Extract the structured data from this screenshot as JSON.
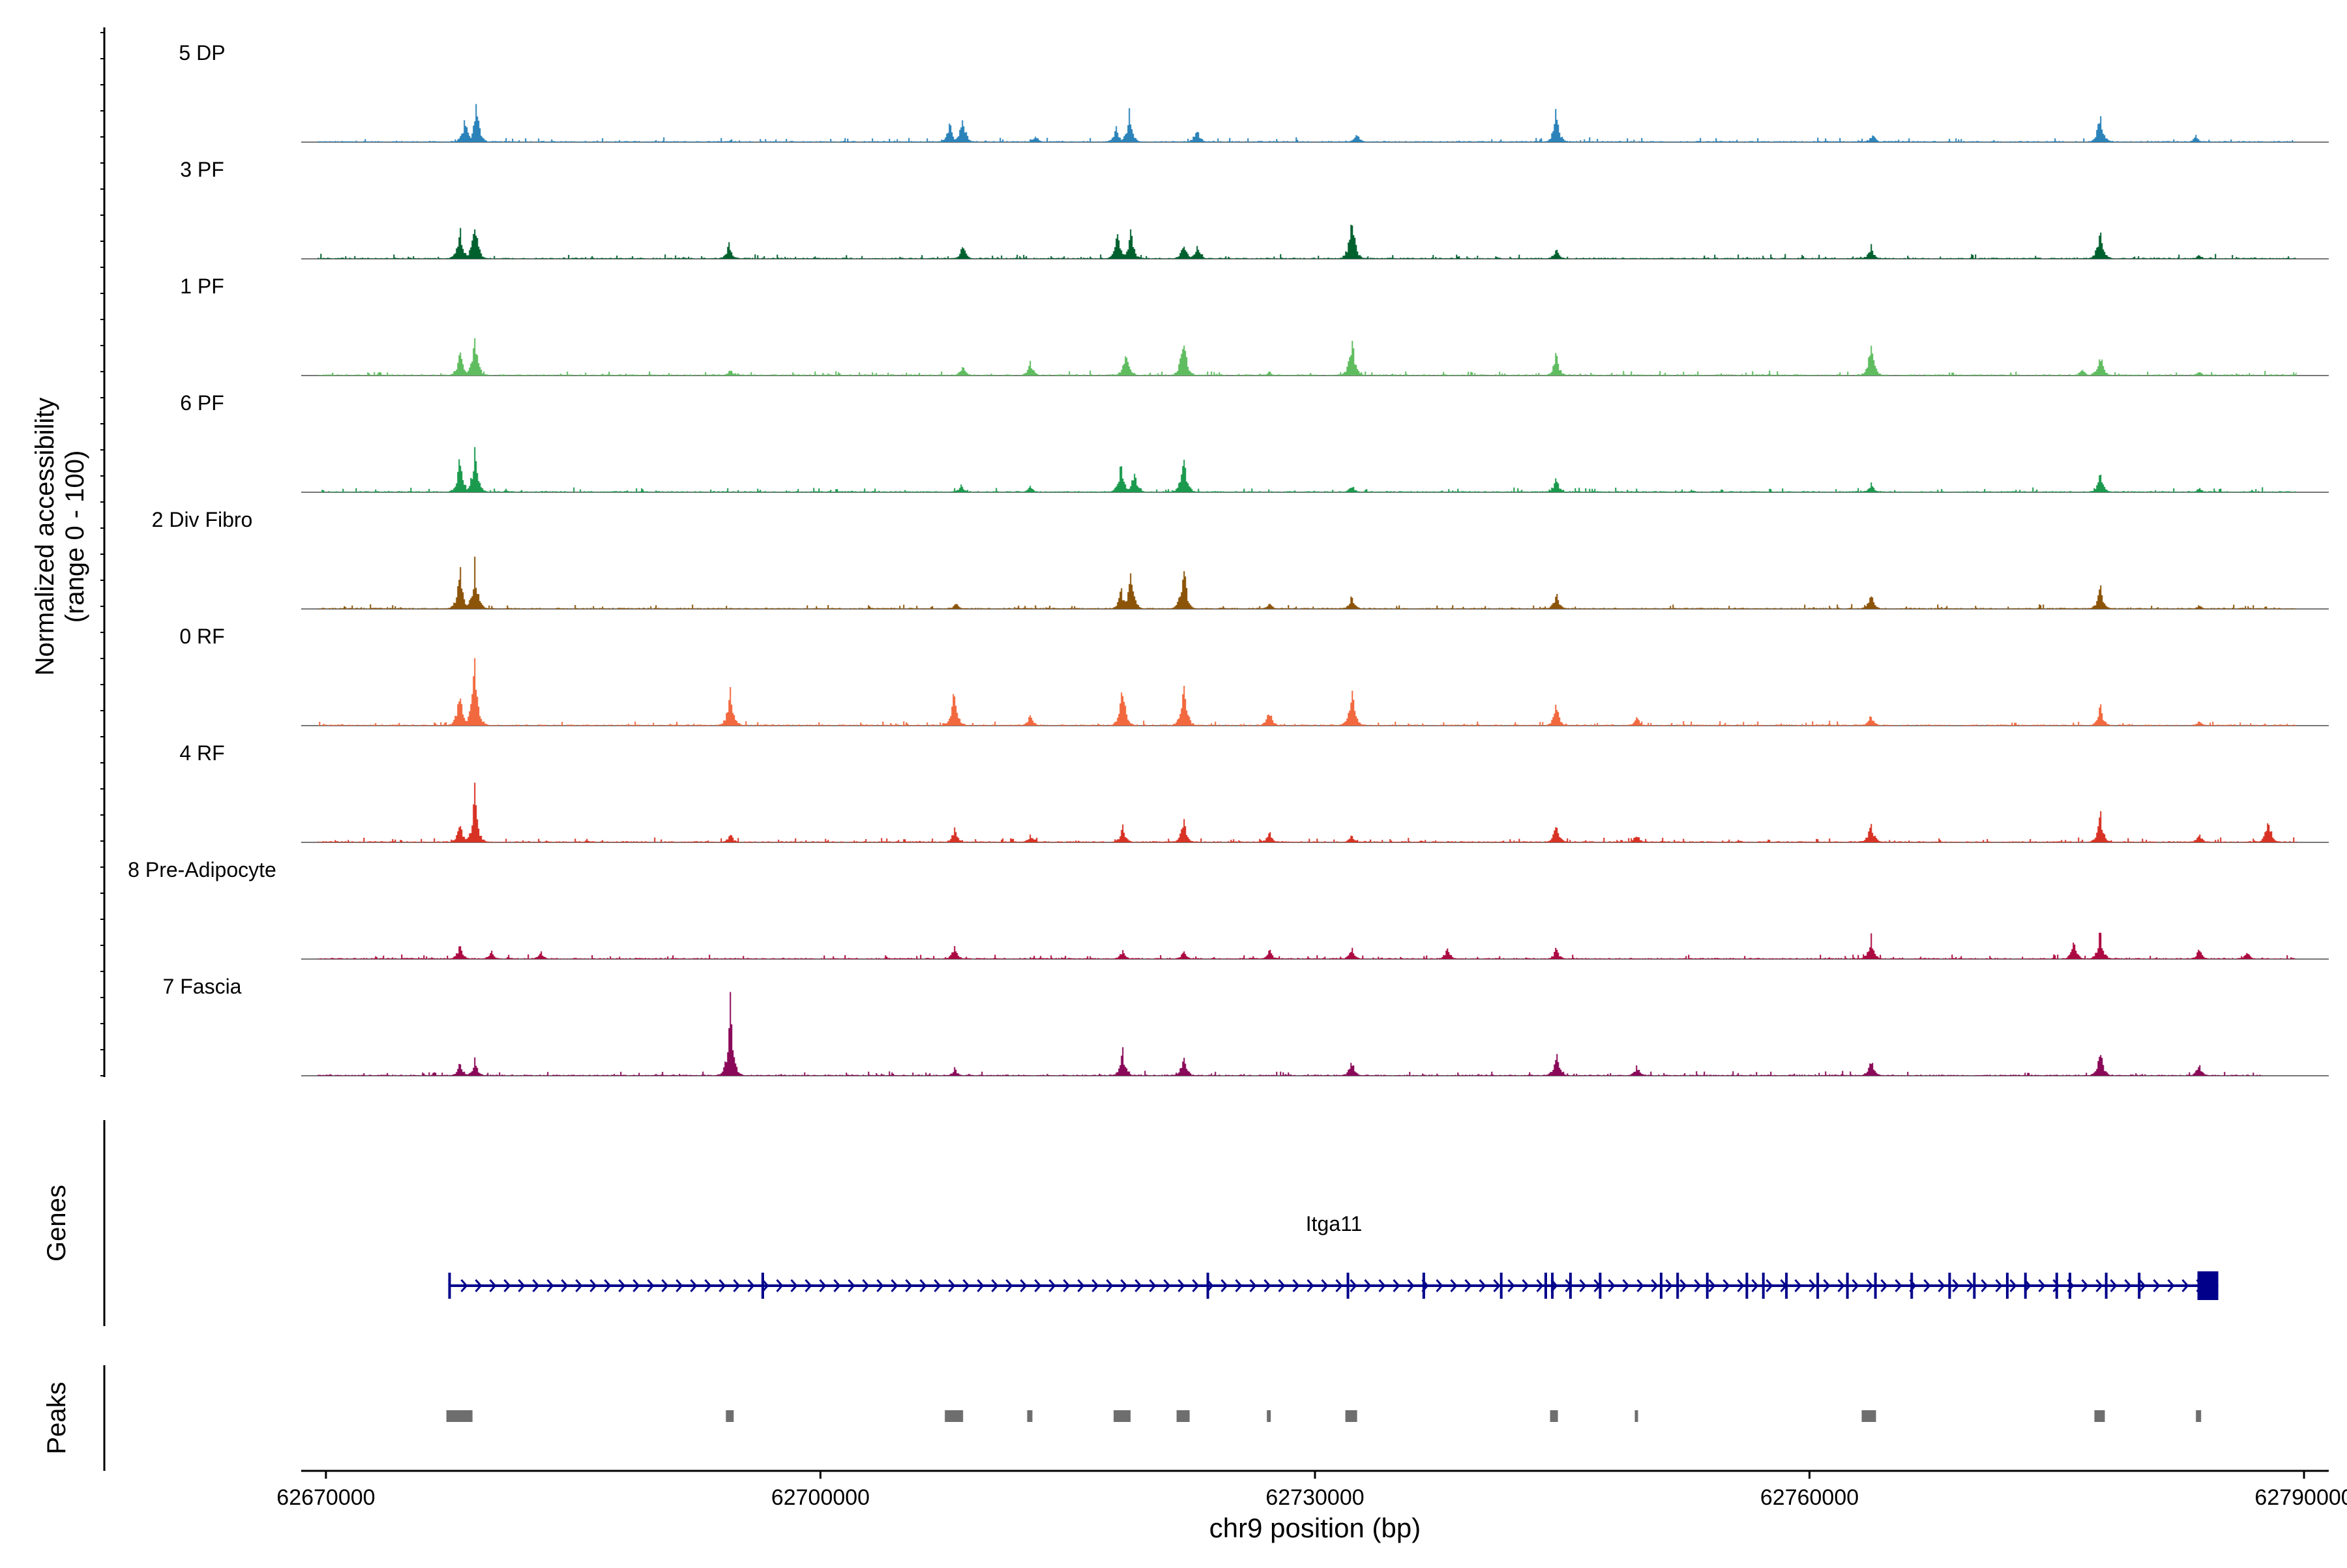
{
  "chart_data": {
    "type": "coverage-track",
    "title": "",
    "y_axis_label_line1": "Normalized accessibility",
    "y_axis_label_line2": "(range 0 - 100)",
    "y_range": [
      0,
      100
    ],
    "xlabel": "chr9 position (bp)",
    "x_range": [
      62668500,
      62791500
    ],
    "x_ticks": [
      62670000,
      62700000,
      62730000,
      62760000,
      62790000
    ],
    "x_tick_labels": [
      "62670000",
      "62700000",
      "62730000",
      "62760000",
      "62790000"
    ],
    "peak_positions": [
      62678100,
      62694500,
      62708100,
      62712700,
      62718300,
      62722000,
      62727200,
      62732200,
      62744500,
      62749500,
      62763600,
      62777600,
      62783600
    ],
    "tracks": [
      {
        "name": "5 DP",
        "color": "#2b83ba",
        "max_x": 62789500,
        "peaks": [
          [
            62678400,
            0.32
          ],
          [
            62679100,
            0.5
          ],
          [
            62707800,
            0.25
          ],
          [
            62708600,
            0.35
          ],
          [
            62713000,
            0.1
          ],
          [
            62717900,
            0.18
          ],
          [
            62718700,
            0.38
          ],
          [
            62722800,
            0.2
          ],
          [
            62732500,
            0.12
          ],
          [
            62744600,
            0.42
          ],
          [
            62763800,
            0.12
          ],
          [
            62777600,
            0.4
          ],
          [
            62783400,
            0.08
          ]
        ]
      },
      {
        "name": "3 PF",
        "color": "#00612f",
        "max_x": 62789500,
        "peaks": [
          [
            62678100,
            0.4
          ],
          [
            62679000,
            0.55
          ],
          [
            62694400,
            0.2
          ],
          [
            62708600,
            0.18
          ],
          [
            62718000,
            0.38
          ],
          [
            62718800,
            0.35
          ],
          [
            62722000,
            0.22
          ],
          [
            62722800,
            0.18
          ],
          [
            62732200,
            0.62
          ],
          [
            62744600,
            0.15
          ],
          [
            62763700,
            0.18
          ],
          [
            62777600,
            0.44
          ],
          [
            62783600,
            0.06
          ]
        ]
      },
      {
        "name": "1 PF",
        "color": "#5fbd60",
        "max_x": 62789500,
        "peaks": [
          [
            62678100,
            0.36
          ],
          [
            62679000,
            0.56
          ],
          [
            62694500,
            0.08
          ],
          [
            62708600,
            0.14
          ],
          [
            62712700,
            0.18
          ],
          [
            62718500,
            0.38
          ],
          [
            62722000,
            0.6
          ],
          [
            62727200,
            0.05
          ],
          [
            62732200,
            0.5
          ],
          [
            62744600,
            0.3
          ],
          [
            62763700,
            0.48
          ],
          [
            62776500,
            0.1
          ],
          [
            62777600,
            0.3
          ],
          [
            62783600,
            0.06
          ]
        ]
      },
      {
        "name": "6 PF",
        "color": "#1b9a4e",
        "max_x": 62789500,
        "peaks": [
          [
            62678100,
            0.5
          ],
          [
            62679000,
            0.58
          ],
          [
            62708500,
            0.1
          ],
          [
            62712700,
            0.08
          ],
          [
            62718200,
            0.36
          ],
          [
            62719000,
            0.28
          ],
          [
            62722000,
            0.52
          ],
          [
            62732200,
            0.1
          ],
          [
            62744600,
            0.18
          ],
          [
            62763700,
            0.12
          ],
          [
            62777600,
            0.26
          ],
          [
            62783600,
            0.06
          ]
        ]
      },
      {
        "name": "2 Div Fibro",
        "color": "#8c5409",
        "max_x": 62789500,
        "peaks": [
          [
            62678100,
            0.52
          ],
          [
            62679000,
            0.58
          ],
          [
            62708200,
            0.08
          ],
          [
            62718200,
            0.26
          ],
          [
            62718800,
            0.52
          ],
          [
            62722000,
            0.6
          ],
          [
            62727200,
            0.08
          ],
          [
            62732200,
            0.18
          ],
          [
            62744600,
            0.2
          ],
          [
            62763700,
            0.22
          ],
          [
            62777600,
            0.3
          ],
          [
            62783600,
            0.05
          ]
        ]
      },
      {
        "name": "0 RF",
        "color": "#f2693f",
        "max_x": 62789500,
        "peaks": [
          [
            62678100,
            0.55
          ],
          [
            62679000,
            0.9
          ],
          [
            62694500,
            0.5
          ],
          [
            62708100,
            0.5
          ],
          [
            62712700,
            0.15
          ],
          [
            62718300,
            0.55
          ],
          [
            62722000,
            0.62
          ],
          [
            62727200,
            0.22
          ],
          [
            62732200,
            0.5
          ],
          [
            62744600,
            0.28
          ],
          [
            62749500,
            0.12
          ],
          [
            62763700,
            0.15
          ],
          [
            62777600,
            0.26
          ],
          [
            62783600,
            0.06
          ]
        ]
      },
      {
        "name": "4 RF",
        "color": "#d83224",
        "max_x": 62789500,
        "peaks": [
          [
            62678100,
            0.26
          ],
          [
            62679000,
            0.66
          ],
          [
            62694500,
            0.12
          ],
          [
            62708100,
            0.18
          ],
          [
            62712700,
            0.1
          ],
          [
            62718300,
            0.2
          ],
          [
            62722000,
            0.3
          ],
          [
            62727200,
            0.14
          ],
          [
            62732200,
            0.1
          ],
          [
            62744600,
            0.28
          ],
          [
            62749500,
            0.12
          ],
          [
            62763700,
            0.28
          ],
          [
            62777600,
            0.4
          ],
          [
            62783600,
            0.12
          ],
          [
            62787800,
            0.36
          ]
        ]
      },
      {
        "name": "8 Pre-Adipocyte",
        "color": "#ac0a42",
        "max_x": 62789500,
        "peaks": [
          [
            62678100,
            0.2
          ],
          [
            62680000,
            0.12
          ],
          [
            62683000,
            0.1
          ],
          [
            62708100,
            0.18
          ],
          [
            62718300,
            0.12
          ],
          [
            62722000,
            0.1
          ],
          [
            62727200,
            0.12
          ],
          [
            62732200,
            0.14
          ],
          [
            62738000,
            0.16
          ],
          [
            62744600,
            0.14
          ],
          [
            62763700,
            0.28
          ],
          [
            62776000,
            0.24
          ],
          [
            62777600,
            0.36
          ],
          [
            62783600,
            0.14
          ],
          [
            62786500,
            0.12
          ]
        ]
      },
      {
        "name": "7 Fascia",
        "color": "#8a0a59",
        "max_x": 62787500,
        "peaks": [
          [
            62678100,
            0.18
          ],
          [
            62679000,
            0.2
          ],
          [
            62694500,
            0.9
          ],
          [
            62708100,
            0.1
          ],
          [
            62718300,
            0.32
          ],
          [
            62722000,
            0.28
          ],
          [
            62732200,
            0.2
          ],
          [
            62744600,
            0.3
          ],
          [
            62749500,
            0.14
          ],
          [
            62763700,
            0.22
          ],
          [
            62777600,
            0.36
          ],
          [
            62783600,
            0.16
          ]
        ]
      }
    ],
    "genes_label": "Genes",
    "peaks_label": "Peaks",
    "gene": {
      "name": "Itga11",
      "color": "#00008b",
      "start": 62677500,
      "end": 62784800,
      "exons": [
        62677500,
        62696500,
        62723500,
        62732000,
        62736600,
        62741300,
        62744000,
        62744400,
        62745500,
        62747300,
        62751000,
        62752000,
        62753800,
        62756200,
        62757200,
        62758600,
        62760500,
        62762300,
        62764000,
        62766200,
        62768500,
        62770000,
        62772000,
        62773100,
        62775000,
        62775800,
        62778000,
        62780000,
        62784200
      ]
    }
  }
}
